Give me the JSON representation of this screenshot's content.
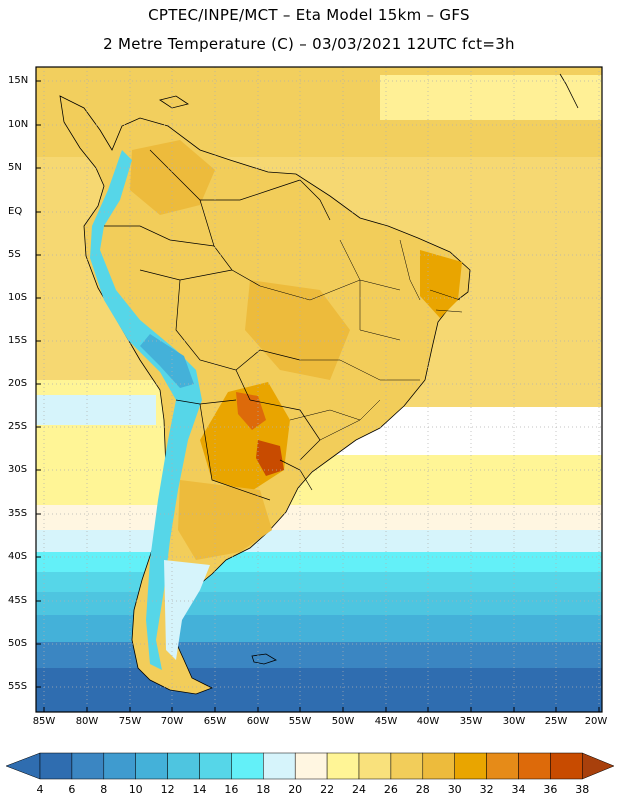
{
  "header": {
    "line1": "CPTEC/INPE/MCT –  Eta Model 15km – GFS",
    "line2": "2 Metre Temperature (C) – 03/03/2021 12UTC fct=3h"
  },
  "map": {
    "lat_labels": [
      "15N",
      "10N",
      "5N",
      "EQ",
      "5S",
      "10S",
      "15S",
      "20S",
      "25S",
      "30S",
      "35S",
      "40S",
      "45S",
      "50S",
      "55S"
    ],
    "lon_labels": [
      "85W",
      "80W",
      "75W",
      "70W",
      "65W",
      "60W",
      "55W",
      "50W",
      "45W",
      "40W",
      "35W",
      "30W",
      "25W",
      "20W"
    ]
  },
  "legend": {
    "labels": [
      "4",
      "6",
      "8",
      "10",
      "12",
      "14",
      "16",
      "18",
      "20",
      "22",
      "24",
      "26",
      "28",
      "30",
      "32",
      "34",
      "36",
      "38"
    ],
    "colors": [
      "#2f6db0",
      "#3b86c2",
      "#3f9bcf",
      "#44b1d9",
      "#4ec5e0",
      "#56d6e8",
      "#63f0f8",
      "#d6f4fb",
      "#fff6e1",
      "#fff596",
      "#f9e17c",
      "#f2cd5a",
      "#edbb3c",
      "#e9a500",
      "#e68b18",
      "#dd6a0a",
      "#c84b00"
    ],
    "low_arrow_color": "#2f6db0",
    "high_arrow_color": "#a8400c"
  }
}
